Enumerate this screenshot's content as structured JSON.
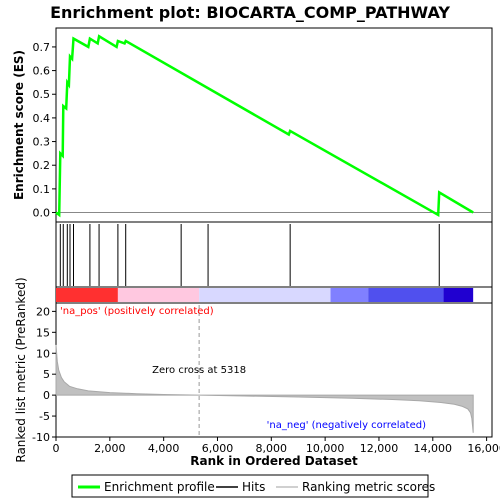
{
  "chart_data": {
    "type": "line",
    "title": "Enrichment plot: BIOCARTA_COMP_PATHWAY",
    "es_panel": {
      "ylabel": "Enrichment score (ES)",
      "ylim": [
        -0.04,
        0.78
      ],
      "yticks": [
        "0.0",
        "0.1",
        "0.2",
        "0.3",
        "0.4",
        "0.5",
        "0.6",
        "0.7"
      ],
      "ytick_values": [
        0.0,
        0.1,
        0.2,
        0.3,
        0.4,
        0.5,
        0.6,
        0.7
      ],
      "series": [
        {
          "name": "Enrichment profile",
          "color": "#00ff00",
          "x": [
            0,
            120,
            160,
            250,
            270,
            380,
            420,
            480,
            520,
            600,
            650,
            1200,
            1260,
            1550,
            1600,
            2250,
            2300,
            2550,
            2590,
            8650,
            8700,
            14200,
            14240,
            15500
          ],
          "y": [
            0.0,
            -0.01,
            0.25,
            0.24,
            0.45,
            0.44,
            0.55,
            0.54,
            0.66,
            0.65,
            0.735,
            0.7,
            0.735,
            0.715,
            0.745,
            0.7,
            0.725,
            0.715,
            0.725,
            0.33,
            0.345,
            -0.01,
            0.085,
            0.0
          ]
        }
      ]
    },
    "hits": {
      "color": "#000000",
      "positions": [
        160,
        270,
        420,
        520,
        650,
        1260,
        1600,
        2300,
        2590,
        4650,
        5650,
        8700,
        14240
      ]
    },
    "ranked_panel": {
      "ylabel": "Ranked list metric (PreRanked)",
      "ylim": [
        -10,
        22
      ],
      "yticks": [
        "-10",
        "-5",
        "0",
        "5",
        "10",
        "15",
        "20"
      ],
      "ytick_values": [
        -10,
        -5,
        0,
        5,
        10,
        15,
        20
      ],
      "fill_color": "#c0c0c0",
      "curve_x": [
        0,
        50,
        100,
        200,
        300,
        500,
        800,
        1200,
        2000,
        3000,
        4000,
        5318,
        7000,
        9000,
        11000,
        12500,
        13500,
        14300,
        14800,
        15100,
        15300,
        15400,
        15450,
        15500
      ],
      "curve_y": [
        12,
        8,
        6,
        4.2,
        3.2,
        2.1,
        1.5,
        1.0,
        0.6,
        0.35,
        0.15,
        0.0,
        -0.2,
        -0.45,
        -0.75,
        -1.05,
        -1.35,
        -1.75,
        -2.2,
        -2.7,
        -3.3,
        -4.2,
        -5.5,
        -9
      ],
      "zero_cross_x": 5318,
      "zero_cross_label": "Zero cross at 5318",
      "pos_label": "'na_pos' (positively correlated)",
      "neg_label": "'na_neg' (negatively correlated)",
      "pos_color": "#ff0000",
      "neg_color": "#0000ff"
    },
    "color_bar": {
      "segments": [
        {
          "from": 0,
          "to": 2300,
          "color": "#ff3030"
        },
        {
          "from": 2300,
          "to": 5318,
          "color": "#ffc8e0"
        },
        {
          "from": 5318,
          "to": 10200,
          "color": "#d8d8ff"
        },
        {
          "from": 10200,
          "to": 11600,
          "color": "#8080ff"
        },
        {
          "from": 11600,
          "to": 14400,
          "color": "#5050ee"
        },
        {
          "from": 14400,
          "to": 15500,
          "color": "#2000d0"
        }
      ]
    },
    "xlabel": "Rank in Ordered Dataset",
    "xlim": [
      0,
      16200
    ],
    "xtick_values": [
      0,
      2000,
      4000,
      6000,
      8000,
      10000,
      12000,
      14000,
      16000
    ],
    "xticks": [
      "0",
      "2,000",
      "4,000",
      "6,000",
      "8,000",
      "10,000",
      "12,000",
      "14,000",
      "16,000"
    ],
    "legend": {
      "placement": "bottom",
      "entries": [
        {
          "label": "Enrichment profile",
          "color": "#00ff00"
        },
        {
          "label": "Hits",
          "color": "#000000"
        },
        {
          "label": "Ranking metric scores",
          "color": "#c0c0c0"
        }
      ]
    }
  }
}
